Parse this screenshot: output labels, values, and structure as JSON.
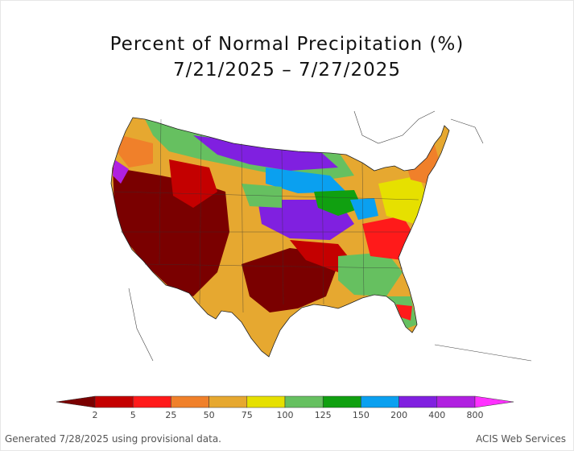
{
  "title_line1": "Percent of Normal Precipitation (%)",
  "title_line2": "7/21/2025 – 7/27/2025",
  "legend": {
    "breaks": [
      "2",
      "5",
      "25",
      "50",
      "75",
      "100",
      "125",
      "150",
      "200",
      "400",
      "800"
    ],
    "colors": [
      "#7a0000",
      "#c40000",
      "#ff1a1a",
      "#f0802a",
      "#e6a830",
      "#e6e000",
      "#66c060",
      "#10a010",
      "#0aa0f0",
      "#8020e0",
      "#b020e0",
      "#ff30ff"
    ]
  },
  "footer_left": "Generated 7/28/2025 using provisional data.",
  "footer_right": "ACIS Web Services"
}
